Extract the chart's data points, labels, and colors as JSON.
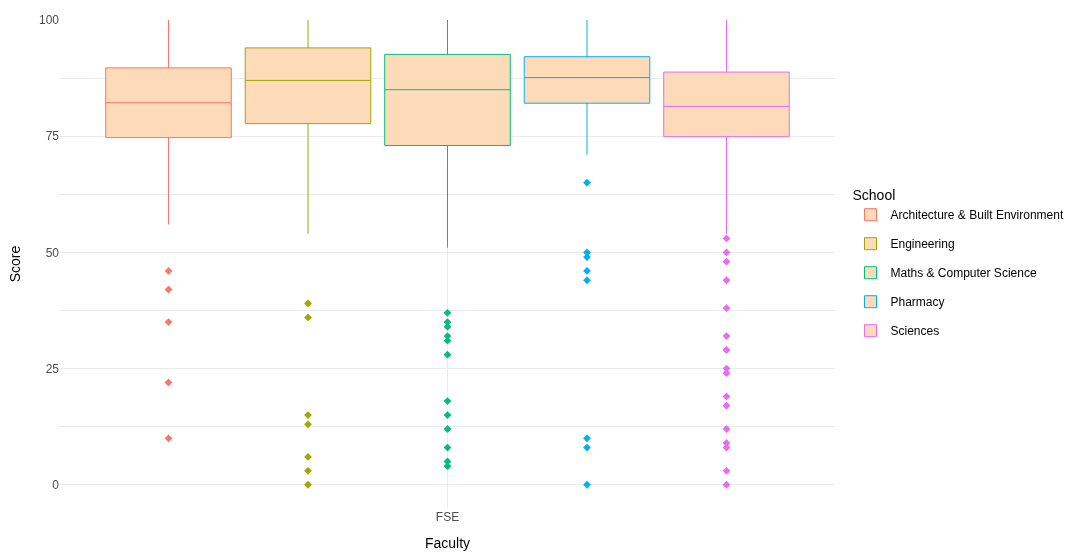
{
  "chart_data": {
    "type": "box",
    "xlabel": "Faculty",
    "ylabel": "Score",
    "legend_title": "School",
    "categories": [
      "FSE"
    ],
    "ylim": [
      -5,
      100
    ],
    "yticks": [
      0,
      {
        "value": 12.5,
        "label": null
      },
      25,
      {
        "value": 37.5,
        "label": null
      },
      50,
      {
        "value": 62.5,
        "label": null
      },
      75,
      {
        "value": 87.5,
        "label": null
      },
      100
    ],
    "grid": true,
    "legend": "right",
    "marker": "diamond",
    "series": [
      {
        "name": "Architecture & Built Environment",
        "color": "#f8766d",
        "boxes": [
          {
            "low": 56,
            "q1": 74.7,
            "median": 82.2,
            "q3": 89.7,
            "high": 100,
            "outliers": [
              46,
              42,
              35,
              22,
              10
            ]
          }
        ]
      },
      {
        "name": "Engineering",
        "color": "#a3a500",
        "boxes": [
          {
            "low": 54,
            "q1": 77.7,
            "median": 87,
            "q3": 94,
            "high": 100,
            "outliers": [
              39,
              36,
              15,
              13,
              6,
              3,
              0
            ]
          }
        ]
      },
      {
        "name": "Maths & Computer Science",
        "color": "#00bf7d",
        "boxes": [
          {
            "low": 51,
            "q1": 73,
            "median": 85,
            "q3": 92.6,
            "high": 100,
            "outliers": [
              37,
              35,
              34,
              32,
              31,
              28,
              18,
              15,
              12,
              8,
              5,
              4
            ]
          }
        ]
      },
      {
        "name": "Pharmacy",
        "color": "#00b0f6",
        "boxes": [
          {
            "low": 71,
            "q1": 82.1,
            "median": 87.6,
            "q3": 92.1,
            "high": 100,
            "outliers": [
              65,
              50,
              49,
              46,
              44,
              10,
              8,
              0
            ]
          }
        ]
      },
      {
        "name": "Sciences",
        "color": "#e76bf3",
        "boxes": [
          {
            "low": 54,
            "q1": 74.9,
            "median": 81.4,
            "q3": 88.8,
            "high": 100,
            "outliers": [
              53,
              50,
              48,
              44,
              38,
              32,
              29,
              25,
              24,
              19,
              17,
              12,
              9,
              8,
              3,
              0
            ]
          }
        ]
      }
    ]
  }
}
